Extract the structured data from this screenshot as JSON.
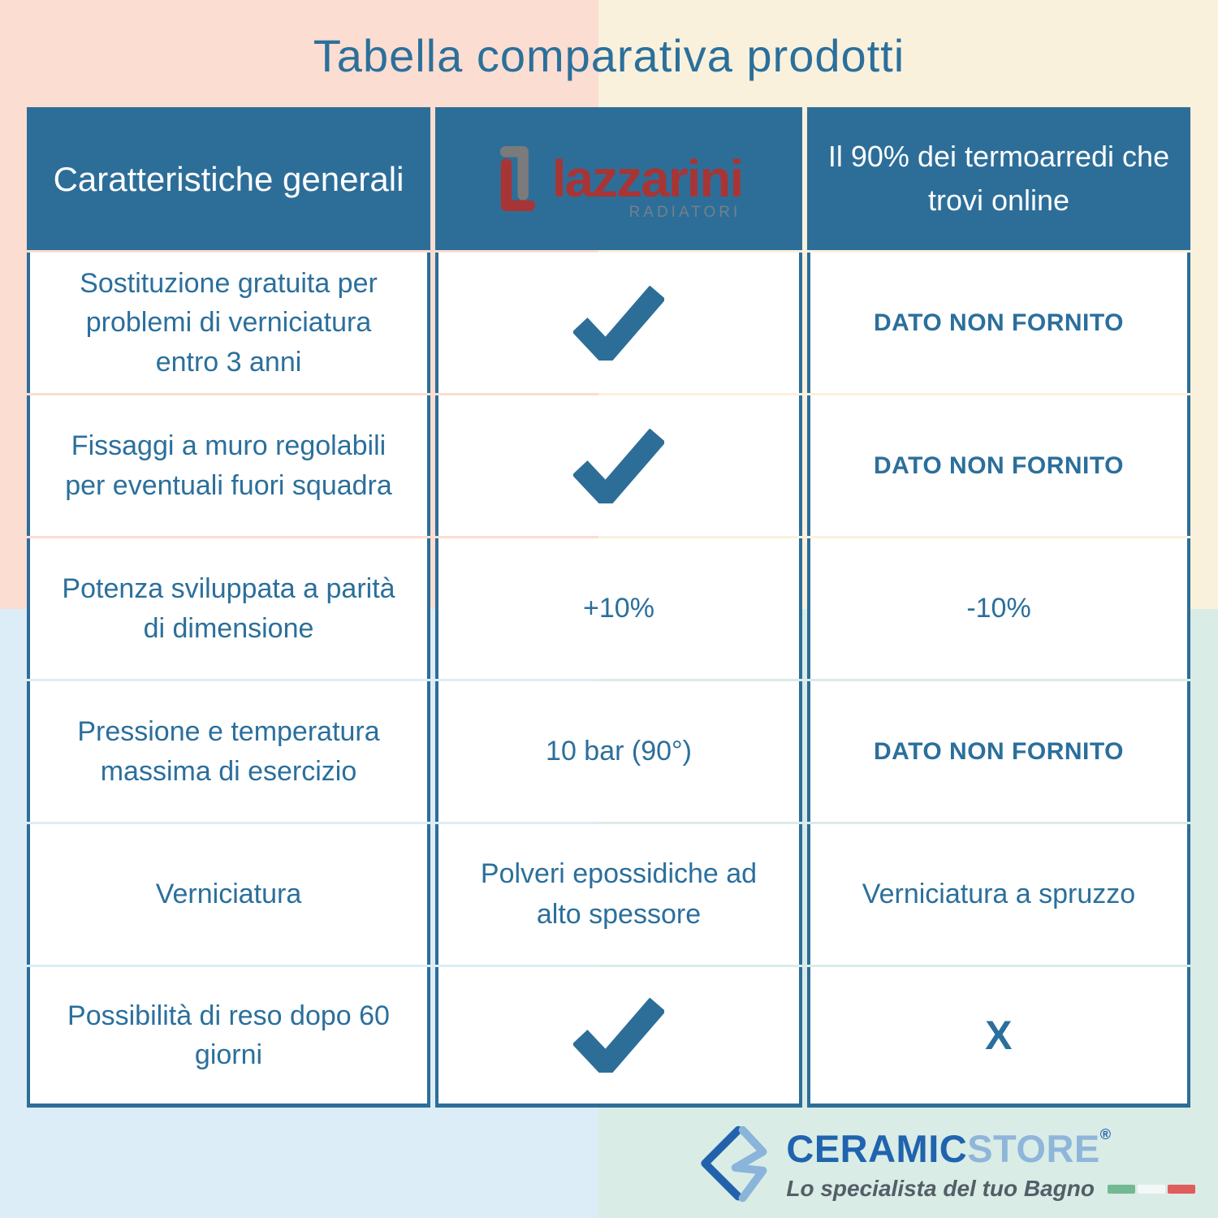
{
  "title": "Tabella comparativa prodotti",
  "colors": {
    "accent_blue": "#2d6e99",
    "text_blue": "#2b6f9c",
    "lazzarini_red": "#a83535",
    "lazzarini_gray": "#7b7b7b",
    "bg_top_left": "#fbddd1",
    "bg_top_right": "#faf1dd",
    "bg_bottom_left": "#dcedf7",
    "bg_bottom_right": "#d9ece6",
    "ceramic_dark_blue": "#2063ae",
    "ceramic_light_blue": "#8fb6da"
  },
  "table": {
    "header": {
      "col1": "Caratteristiche generali",
      "col2_logo_name": "lazzarini",
      "col2_logo_sub": "RADIATORI",
      "col3": "Il 90% dei termoarredi che trovi online"
    },
    "rows": [
      {
        "label": "Sostituzione gratuita per problemi di verniciatura entro 3 anni",
        "lazzarini": {
          "type": "check"
        },
        "online": {
          "type": "text",
          "value": "DATO NON FORNITO",
          "bold": true
        }
      },
      {
        "label": "Fissaggi a muro regolabili per eventuali fuori squadra",
        "lazzarini": {
          "type": "check"
        },
        "online": {
          "type": "text",
          "value": "DATO NON FORNITO",
          "bold": true
        }
      },
      {
        "label": "Potenza sviluppata a parità di dimensione",
        "lazzarini": {
          "type": "text",
          "value": "+10%"
        },
        "online": {
          "type": "text",
          "value": "-10%"
        }
      },
      {
        "label": "Pressione e temperatura massima di esercizio",
        "lazzarini": {
          "type": "text",
          "value": "10 bar (90°)"
        },
        "online": {
          "type": "text",
          "value": "DATO NON FORNITO",
          "bold": true
        }
      },
      {
        "label": "Verniciatura",
        "lazzarini": {
          "type": "text",
          "value": "Polveri epossidiche ad alto spessore"
        },
        "online": {
          "type": "text",
          "value": "Verniciatura a spruzzo"
        }
      },
      {
        "label": "Possibilità di reso dopo 60 giorni",
        "lazzarini": {
          "type": "check"
        },
        "online": {
          "type": "text",
          "value": "X",
          "bold": true,
          "large": true
        }
      }
    ]
  },
  "footer": {
    "brand_part1": "CERAMIC",
    "brand_part2": "STORE",
    "registered": "®",
    "tagline": "Lo specialista del tuo Bagno"
  }
}
